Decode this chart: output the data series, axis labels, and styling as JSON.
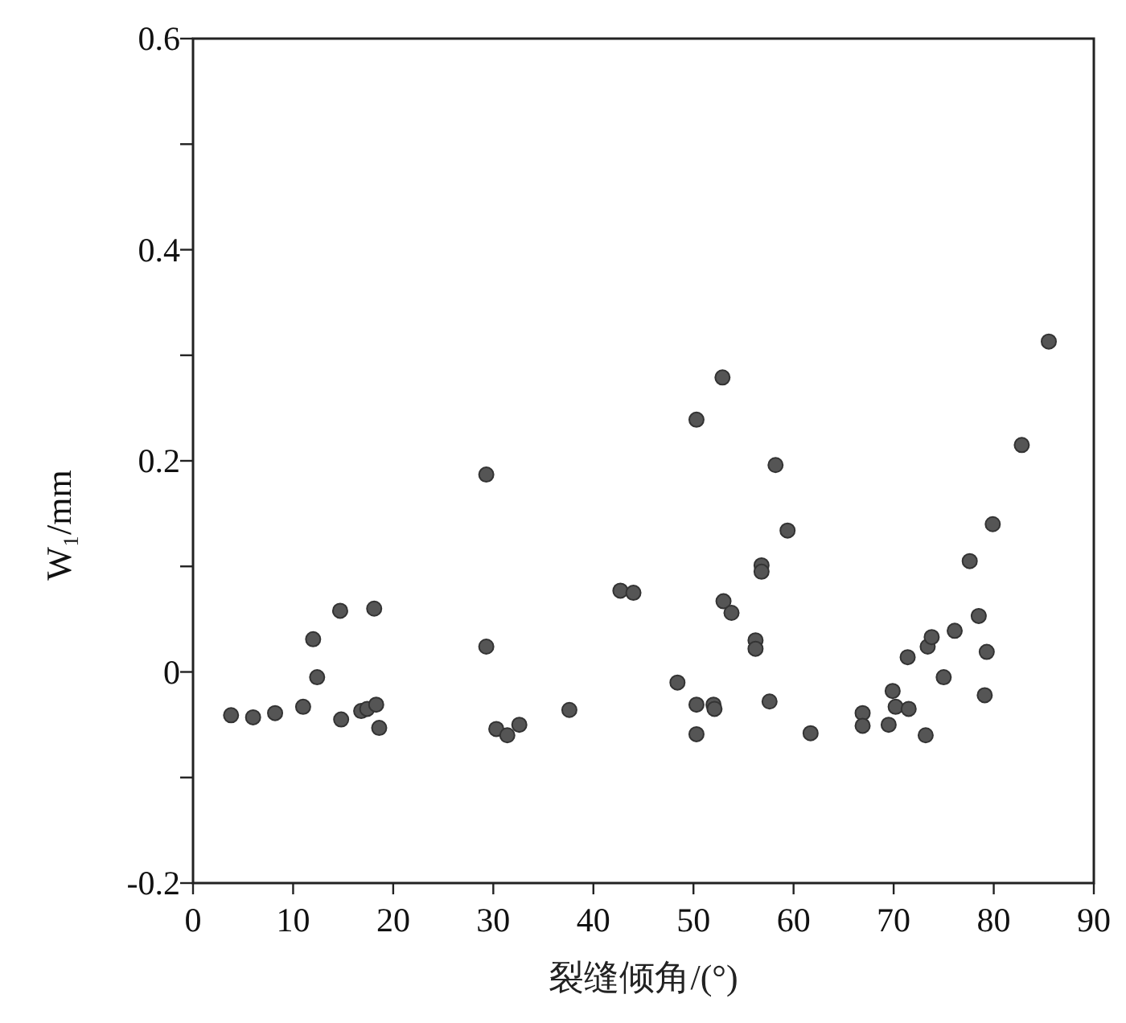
{
  "chart_data": {
    "type": "scatter",
    "xlabel": "裂缝倾角/(°)",
    "ylabel": "W₁/mm",
    "xlim": [
      0,
      90
    ],
    "xticks": [
      0,
      10,
      20,
      30,
      40,
      50,
      60,
      70,
      80,
      90
    ],
    "ylim": [
      -0.2,
      0.6
    ],
    "yticks": [
      {
        "value": -0.2,
        "label": "-0.2"
      },
      {
        "value": -0.1,
        "label": null
      },
      0,
      {
        "value": 0.1,
        "label": null
      },
      0.2,
      {
        "value": 0.3,
        "label": null
      },
      0.4,
      {
        "value": 0.5,
        "label": null
      },
      0.6
    ],
    "marker": "circle",
    "grid": false,
    "series": [
      {
        "color": "#555555",
        "x": [
          3.8,
          6.0,
          8.2,
          11.0,
          12.0,
          12.4,
          14.7,
          14.8,
          16.8,
          17.4,
          18.3,
          18.1,
          18.6,
          29.3,
          29.3,
          30.3,
          31.4,
          32.6,
          37.6,
          42.7,
          44.0,
          48.4,
          50.3,
          50.3,
          50.3,
          52.0,
          52.1,
          52.9,
          53.0,
          53.8,
          56.2,
          56.2,
          56.8,
          56.8,
          57.6,
          58.2,
          59.4,
          61.7,
          66.9,
          66.9,
          69.5,
          69.9,
          70.2,
          71.4,
          71.5,
          73.2,
          73.4,
          73.8,
          75.0,
          76.1,
          77.6,
          78.5,
          79.1,
          79.3,
          79.9,
          82.8,
          85.5
        ],
        "values": [
          -0.041,
          -0.043,
          -0.039,
          -0.033,
          0.031,
          -0.005,
          0.058,
          -0.045,
          -0.037,
          -0.035,
          -0.031,
          0.06,
          -0.053,
          0.187,
          0.024,
          -0.054,
          -0.06,
          -0.05,
          -0.036,
          0.077,
          0.075,
          -0.01,
          0.239,
          -0.031,
          -0.059,
          -0.031,
          -0.035,
          0.279,
          0.067,
          0.056,
          0.03,
          0.022,
          0.101,
          0.095,
          -0.028,
          0.196,
          0.134,
          -0.058,
          -0.039,
          -0.051,
          -0.05,
          -0.018,
          -0.033,
          0.014,
          -0.035,
          -0.06,
          0.024,
          0.033,
          -0.005,
          0.039,
          0.105,
          0.053,
          -0.022,
          0.019,
          0.14,
          0.215,
          0.313
        ]
      }
    ]
  }
}
